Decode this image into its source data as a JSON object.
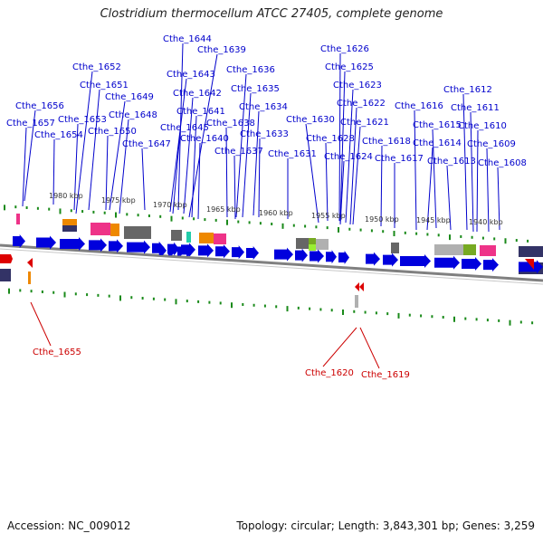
{
  "title": "Clostridium thermocellum ATCC 27405, complete genome",
  "footer": {
    "accession": "Accession: NC_009012",
    "summary": "Topology: circular; Length: 3,843,301 bp; Genes: 3,259"
  },
  "colors": {
    "forward_gene": "#0000dd",
    "reverse_gene": "#dd0000",
    "forward_label": "#0000cc",
    "reverse_label": "#cc0000",
    "tick": "#1a8a1a",
    "backbone": "#808080",
    "cog_pink": "#ee3388",
    "cog_orange": "#ee8800",
    "cog_gray": "#666666",
    "cog_lightgray": "#b0b0b0",
    "cog_green": "#77aa22",
    "cog_lime": "#99ee33",
    "cog_teal": "#22ccaa",
    "cog_navy": "#333366"
  },
  "scale_labels": [
    "1980 kbp",
    "1975 kbp",
    "1970 kbp",
    "1965 kbp",
    "1960 kbp",
    "1955 kbp",
    "1950 kbp",
    "1945 kbp",
    "1940 kbp"
  ],
  "forward_labels": [
    "Cthe_1644",
    "Cthe_1639",
    "Cthe_1652",
    "Cthe_1643",
    "Cthe_1636",
    "Cthe_1651",
    "Cthe_1642",
    "Cthe_1635",
    "Cthe_1649",
    "Cthe_1656",
    "Cthe_1641",
    "Cthe_1634",
    "Cthe_1648",
    "Cthe_1657",
    "Cthe_1653",
    "Cthe_1638",
    "Cthe_1645",
    "Cthe_1650",
    "Cthe_1633",
    "Cthe_1654",
    "Cthe_1640",
    "Cthe_1647",
    "Cthe_1637",
    "Cthe_1631",
    "Cthe_1626",
    "Cthe_1625",
    "Cthe_1623",
    "Cthe_1622",
    "Cthe_1630",
    "Cthe_1621",
    "Cthe_1628",
    "Cthe_1624",
    "Cthe_1618",
    "Cthe_1617",
    "Cthe_1612",
    "Cthe_1616",
    "Cthe_1611",
    "Cthe_1615",
    "Cthe_1610",
    "Cthe_1614",
    "Cthe_1609",
    "Cthe_1613",
    "Cthe_1608"
  ],
  "reverse_labels": [
    "Cthe_1655",
    "Cthe_1620",
    "Cthe_1619"
  ]
}
